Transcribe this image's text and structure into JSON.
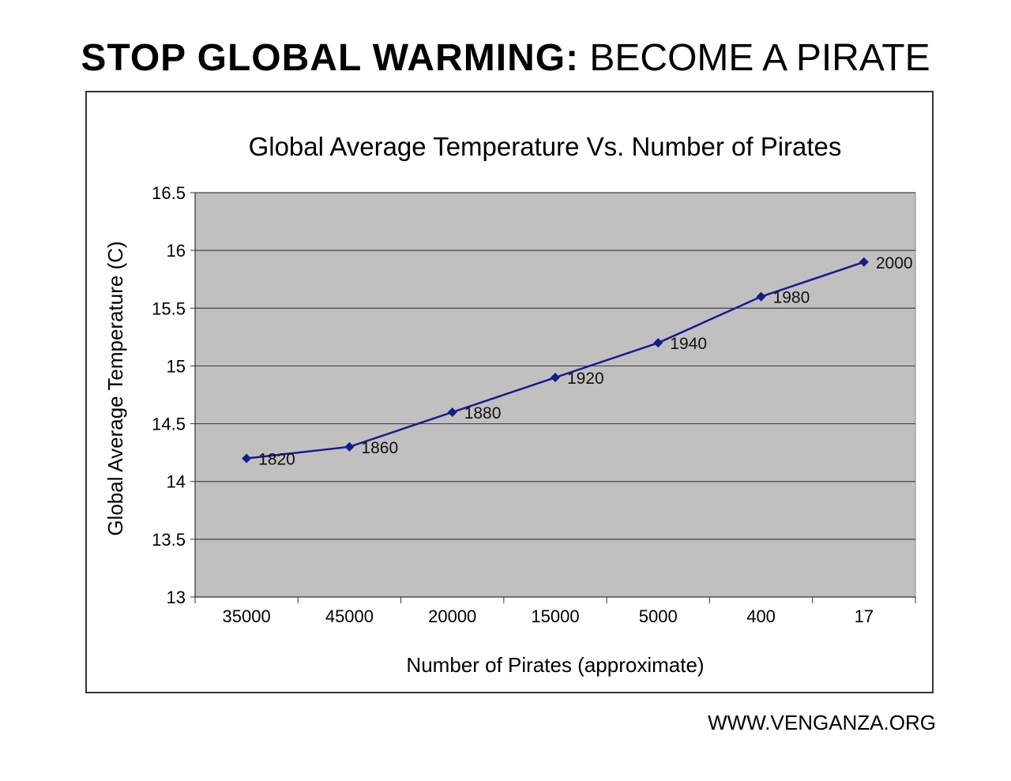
{
  "headline": {
    "bold_part": "STOP GLOBAL WARMING:",
    "normal_part": "BECOME A PIRATE"
  },
  "footer": {
    "url_text": "WWW.VENGANZA.ORG"
  },
  "colors": {
    "plot_background": "#c0c0c0",
    "series_line": "#1a1a8c",
    "gridline": "#444444"
  },
  "chart_data": {
    "type": "line",
    "title": "Global Average Temperature Vs. Number of Pirates",
    "xlabel": "Number of Pirates (approximate)",
    "ylabel": "Global Average Temperature (C)",
    "categories": [
      "35000",
      "45000",
      "20000",
      "15000",
      "5000",
      "400",
      "17"
    ],
    "series": [
      {
        "values": [
          14.2,
          14.3,
          14.6,
          14.9,
          15.2,
          15.6,
          15.9
        ],
        "point_labels": [
          "1820",
          "1860",
          "1880",
          "1920",
          "1940",
          "1980",
          "2000"
        ]
      }
    ],
    "ylim": [
      13,
      16.5
    ],
    "yticks": [
      "13",
      "13.5",
      "14",
      "14.5",
      "15",
      "15.5",
      "16",
      "16.5"
    ],
    "grid": true,
    "legend": "none"
  }
}
